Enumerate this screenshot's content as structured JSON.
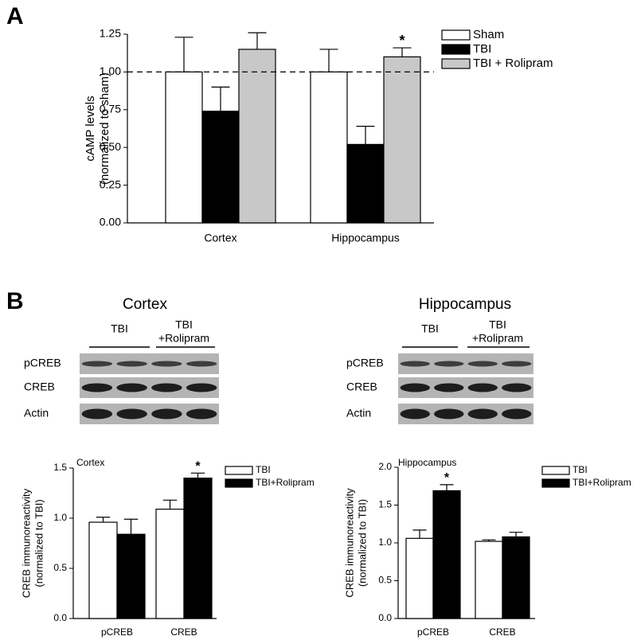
{
  "panels": [
    "A",
    "B"
  ],
  "chart_data": [
    {
      "type": "bar",
      "ylabel": [
        "cAMP levels",
        "(normalized to sham)"
      ],
      "categories": [
        "Cortex",
        "Hippocampus"
      ],
      "series": [
        {
          "name": "Sham",
          "color": "#ffffff",
          "values": [
            1.0,
            1.0
          ],
          "errors": [
            0.23,
            0.15
          ],
          "significance": [
            null,
            null
          ]
        },
        {
          "name": "TBI",
          "color": "#000000",
          "values": [
            0.74,
            0.52
          ],
          "errors": [
            0.16,
            0.12
          ],
          "significance": [
            null,
            null
          ]
        },
        {
          "name": "TBI + Rolipram",
          "color": "#c8c8c8",
          "values": [
            1.15,
            1.1
          ],
          "errors": [
            0.11,
            0.06
          ],
          "significance": [
            null,
            "*"
          ]
        }
      ],
      "reference_line": 1,
      "ylim": [
        0,
        1.25
      ],
      "yticks": [
        {
          "value": 0,
          "label": "0.00"
        },
        {
          "value": 0.25,
          "label": "0.25"
        },
        {
          "value": 0.5,
          "label": "0.50"
        },
        {
          "value": 0.75,
          "label": "0.75"
        },
        {
          "value": 1,
          "label": "1.00"
        },
        {
          "value": 1.25,
          "label": "1.25"
        }
      ],
      "grid": false,
      "legend": "upper right"
    },
    {
      "type": "bar",
      "title": "Cortex",
      "ylabel": [
        "CREB immunoreactivity",
        "(normalized to TBI)"
      ],
      "categories": [
        "pCREB",
        "CREB"
      ],
      "series": [
        {
          "name": "TBI",
          "color": "#ffffff",
          "values": [
            0.96,
            1.09
          ],
          "errors": [
            0.05,
            0.09
          ],
          "significance": [
            null,
            null
          ]
        },
        {
          "name": "TBI+Rolipram",
          "color": "#000000",
          "values": [
            0.84,
            1.4
          ],
          "errors": [
            0.15,
            0.05
          ],
          "significance": [
            null,
            "*"
          ]
        }
      ],
      "ylim": [
        0,
        1.5
      ],
      "yticks": [
        {
          "value": 0,
          "label": "0.0"
        },
        {
          "value": 0.5,
          "label": "0.5"
        },
        {
          "value": 1,
          "label": "1.0"
        },
        1.5
      ],
      "grid": false,
      "legend": "upper right"
    },
    {
      "type": "bar",
      "title": "Hippocampus",
      "ylabel": [
        "CREB immunoreactivity",
        "(normalized to TBI)"
      ],
      "categories": [
        "pCREB",
        "CREB"
      ],
      "series": [
        {
          "name": "TBI",
          "color": "#ffffff",
          "values": [
            1.06,
            1.02
          ],
          "errors": [
            0.11,
            0.02
          ],
          "significance": [
            null,
            null
          ]
        },
        {
          "name": "TBI+Rolipram",
          "color": "#000000",
          "values": [
            1.69,
            1.08
          ],
          "errors": [
            0.08,
            0.06
          ],
          "significance": [
            "*",
            null
          ]
        }
      ],
      "ylim": [
        0,
        2.0
      ],
      "yticks": [
        {
          "value": 0,
          "label": "0.0"
        },
        0.5,
        {
          "value": 1,
          "label": "1.0"
        },
        1.5,
        {
          "value": 2,
          "label": "2.0"
        }
      ],
      "grid": false,
      "legend": "upper right"
    }
  ],
  "blots": [
    {
      "title": "Cortex",
      "groups": [
        [
          "TBI"
        ],
        [
          "TBI",
          "+Rolipram"
        ]
      ],
      "rows": [
        "pCREB",
        "CREB",
        "Actin"
      ]
    },
    {
      "title": "Hippocampus",
      "groups": [
        [
          "TBI"
        ],
        [
          "TBI",
          "+Rolipram"
        ]
      ],
      "rows": [
        "pCREB",
        "CREB",
        "Actin"
      ]
    }
  ]
}
